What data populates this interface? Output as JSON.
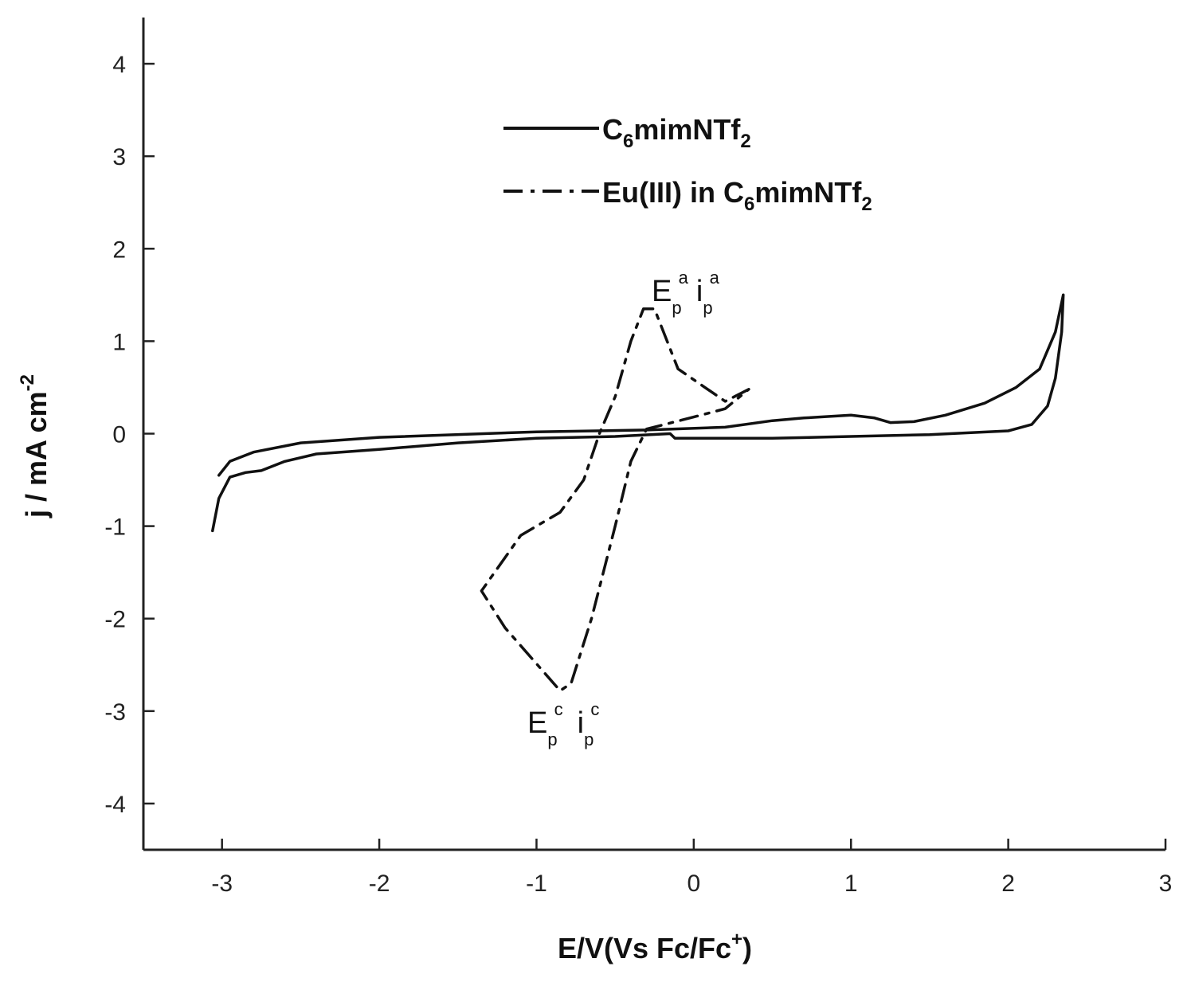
{
  "chart_data": {
    "type": "line",
    "title": "",
    "xlabel": {
      "main": "E/V(Vs Fc/Fc",
      "sup": "+",
      "close": ")"
    },
    "ylabel": {
      "main": "j / mA cm",
      "sup": "-2"
    },
    "xlim": [
      -3.5,
      3
    ],
    "ylim": [
      -4.5,
      4.5
    ],
    "xticks": [
      -3,
      -2,
      -1,
      0,
      1,
      2,
      3
    ],
    "yticks": [
      -4,
      -3,
      -2,
      -1,
      0,
      1,
      2,
      3,
      4
    ],
    "xtick_labels": [
      "-3",
      "-2",
      "-1",
      "0",
      "1",
      "2",
      "3"
    ],
    "ytick_labels": [
      "-4",
      "-3",
      "-2",
      "-1",
      "0",
      "1",
      "2",
      "3",
      "4"
    ],
    "grid": false,
    "legend_position": "top-center",
    "series": [
      {
        "name": "C6mimNTf2",
        "legend": {
          "pre": "C",
          "sub1": "6",
          "mid": "mimNTf",
          "sub2": "2",
          "post": ""
        },
        "style": "solid",
        "color": "#111111",
        "points": [
          [
            -3.06,
            -1.05
          ],
          [
            -3.02,
            -0.7
          ],
          [
            -2.95,
            -0.47
          ],
          [
            -2.85,
            -0.42
          ],
          [
            -2.75,
            -0.4
          ],
          [
            -2.6,
            -0.3
          ],
          [
            -2.4,
            -0.22
          ],
          [
            -2.0,
            -0.17
          ],
          [
            -1.5,
            -0.1
          ],
          [
            -1.0,
            -0.05
          ],
          [
            -0.5,
            -0.03
          ],
          [
            -0.15,
            0.0
          ],
          [
            -0.12,
            -0.05
          ],
          [
            0.5,
            -0.05
          ],
          [
            1.0,
            -0.03
          ],
          [
            1.5,
            -0.01
          ],
          [
            2.0,
            0.03
          ],
          [
            2.15,
            0.1
          ],
          [
            2.25,
            0.3
          ],
          [
            2.3,
            0.6
          ],
          [
            2.34,
            1.1
          ],
          [
            2.35,
            1.5
          ],
          [
            2.3,
            1.1
          ],
          [
            2.2,
            0.7
          ],
          [
            2.05,
            0.5
          ],
          [
            1.85,
            0.33
          ],
          [
            1.6,
            0.2
          ],
          [
            1.4,
            0.13
          ],
          [
            1.25,
            0.12
          ],
          [
            1.15,
            0.17
          ],
          [
            1.0,
            0.2
          ],
          [
            0.7,
            0.17
          ],
          [
            0.5,
            0.14
          ],
          [
            0.2,
            0.07
          ],
          [
            -0.3,
            0.04
          ],
          [
            -1.0,
            0.02
          ],
          [
            -2.0,
            -0.04
          ],
          [
            -2.5,
            -0.1
          ],
          [
            -2.8,
            -0.2
          ],
          [
            -2.95,
            -0.3
          ],
          [
            -3.02,
            -0.45
          ]
        ]
      },
      {
        "name": "Eu(III) in C6mimNTf2",
        "legend": {
          "pre": "Eu(III) in C",
          "sub1": "6",
          "mid": "mimNTf",
          "sub2": "2",
          "post": ""
        },
        "style": "dashdot",
        "color": "#111111",
        "points": [
          [
            0.35,
            0.48
          ],
          [
            0.2,
            0.35
          ],
          [
            -0.1,
            0.7
          ],
          [
            -0.25,
            1.35
          ],
          [
            -0.32,
            1.35
          ],
          [
            -0.4,
            1.0
          ],
          [
            -0.5,
            0.4
          ],
          [
            -0.6,
            0.0
          ],
          [
            -0.7,
            -0.5
          ],
          [
            -0.85,
            -0.85
          ],
          [
            -1.1,
            -1.1
          ],
          [
            -1.35,
            -1.7
          ],
          [
            -1.2,
            -2.1
          ],
          [
            -0.85,
            -2.78
          ],
          [
            -0.78,
            -2.7
          ],
          [
            -0.65,
            -2.0
          ],
          [
            -0.5,
            -1.0
          ],
          [
            -0.4,
            -0.3
          ],
          [
            -0.3,
            0.05
          ],
          [
            0.0,
            0.18
          ],
          [
            0.2,
            0.27
          ],
          [
            0.35,
            0.48
          ]
        ]
      }
    ],
    "annotations": [
      {
        "base": "E",
        "sub": "p",
        "sup": "a",
        "base2": "i",
        "sub2": "p",
        "sup2": "a",
        "anchor": [
          -0.28,
          1.4
        ]
      },
      {
        "base": "E",
        "sub": "p",
        "sup": "c",
        "base2": "i",
        "sub2": "p",
        "sup2": "c",
        "anchor": [
          -0.85,
          -2.9
        ]
      }
    ]
  }
}
